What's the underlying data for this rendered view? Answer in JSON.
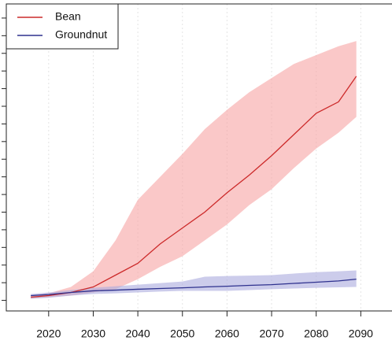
{
  "chart_data": {
    "type": "line",
    "show_bands": true,
    "x": [
      2016,
      2020,
      2025,
      2030,
      2035,
      2040,
      2045,
      2050,
      2055,
      2060,
      2065,
      2070,
      2075,
      2080,
      2085,
      2089
    ],
    "series": [
      {
        "name": "Bean",
        "color": "#cc2a2a",
        "band_color": "#f6a3a3",
        "values": [
          0.18,
          0.27,
          0.45,
          0.76,
          1.43,
          2.1,
          3.2,
          4.1,
          5.0,
          6.1,
          7.1,
          8.2,
          9.4,
          10.6,
          11.25,
          12.7
        ],
        "upper": [
          0.27,
          0.4,
          0.76,
          1.65,
          3.4,
          5.7,
          7.0,
          8.3,
          9.7,
          10.8,
          11.8,
          12.6,
          13.4,
          13.9,
          14.4,
          14.7
        ],
        "lower": [
          0.09,
          0.18,
          0.27,
          0.45,
          0.63,
          1.2,
          1.9,
          2.5,
          3.4,
          4.3,
          5.4,
          6.3,
          7.5,
          8.6,
          9.5,
          10.4
        ]
      },
      {
        "name": "Groundnut",
        "color": "#2e318e",
        "band_color": "#aaaadd",
        "values": [
          0.27,
          0.33,
          0.45,
          0.54,
          0.58,
          0.63,
          0.67,
          0.71,
          0.76,
          0.8,
          0.85,
          0.89,
          0.96,
          1.03,
          1.1,
          1.2
        ],
        "upper": [
          0.36,
          0.45,
          0.58,
          0.71,
          0.8,
          0.89,
          0.98,
          1.07,
          1.34,
          1.38,
          1.4,
          1.43,
          1.52,
          1.6,
          1.65,
          1.7
        ],
        "lower": [
          0.09,
          0.15,
          0.27,
          0.36,
          0.4,
          0.45,
          0.5,
          0.54,
          0.54,
          0.54,
          0.58,
          0.63,
          0.67,
          0.71,
          0.74,
          0.76
        ]
      }
    ],
    "xlim": [
      2010.5,
      2097
    ],
    "xticks": [
      2020,
      2030,
      2040,
      2050,
      2060,
      2070,
      2080,
      2090
    ],
    "ylim": [
      -0.6,
      16.8
    ],
    "yticks": [
      0,
      1,
      2,
      3,
      4,
      5,
      6,
      7,
      8,
      9,
      10,
      11,
      12,
      13,
      14,
      15,
      16
    ],
    "ytick_labels": false,
    "grid": true,
    "legend": "top-left"
  }
}
